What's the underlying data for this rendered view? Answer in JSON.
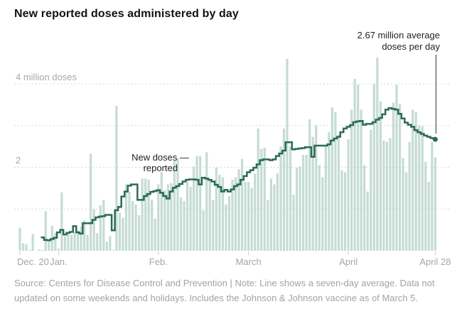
{
  "title": "New reported doses administered by day",
  "y_axis": {
    "label_4m": "4 million doses",
    "label_2m": "2"
  },
  "x_axis": {
    "ticks": [
      {
        "label": "Dec. 20",
        "day_index": 0
      },
      {
        "label": "Jan.",
        "day_index": 12
      },
      {
        "label": "Feb.",
        "day_index": 43
      },
      {
        "label": "March",
        "day_index": 71
      },
      {
        "label": "April",
        "day_index": 102
      },
      {
        "label": "April 28",
        "day_index": 129
      }
    ]
  },
  "annotations": {
    "avg_line1": "2.67 million average",
    "avg_line2": "doses per day",
    "new_doses_line1": "New doses —",
    "new_doses_line2": "reported"
  },
  "source_note": "Source: Centers for Disease Control and Prevention | Note: Line shows a seven-day average. Data not updated on some weekends and holidays. Includes the Johnson & Johnson vaccine as of March 5.",
  "colors": {
    "bar": "#c5dcd2",
    "line": "#2b6a58",
    "gridline": "#d9d9d9",
    "tick": "#c9c9c9",
    "pointer": "#333333",
    "title_text": "#121212",
    "axis_text": "#a5a5a5",
    "source_text": "#a3a3a3"
  },
  "chart_data": {
    "type": "bar",
    "note": "daily bars with seven-day-average step line overlay",
    "start_date": "2020-12-20",
    "end_date": "2021-04-28",
    "unit": "million doses per day",
    "ylim": [
      0,
      4.7
    ],
    "grid_values_million": [
      1,
      2,
      3,
      4
    ],
    "bars_daily_million": [
      0.55,
      0.18,
      0.16,
      0.02,
      0.4,
      0.0,
      0.03,
      0.02,
      0.95,
      0.24,
      0.6,
      0.43,
      0.05,
      1.4,
      0.35,
      0.43,
      0.38,
      0.45,
      0.48,
      0.58,
      0.73,
      0.38,
      2.33,
      1.0,
      0.42,
      1.09,
      1.22,
      0.22,
      0.35,
      0.02,
      3.47,
      0.91,
      0.79,
      1.59,
      1.42,
      1.19,
      1.11,
      0.85,
      1.73,
      1.73,
      1.7,
      1.22,
      0.77,
      1.59,
      1.88,
      1.45,
      1.59,
      1.62,
      2.16,
      2.22,
      1.28,
      1.19,
      1.65,
      1.53,
      2.02,
      2.27,
      2.27,
      0.97,
      2.36,
      1.68,
      1.22,
      1.99,
      1.82,
      1.76,
      1.11,
      1.31,
      1.7,
      1.76,
      1.95,
      2.2,
      1.65,
      1.65,
      1.51,
      1.85,
      2.93,
      2.44,
      2.47,
      1.22,
      1.73,
      1.59,
      1.85,
      2.5,
      2.93,
      4.6,
      2.5,
      1.34,
      1.99,
      2.02,
      2.3,
      2.3,
      3.15,
      2.73,
      3.01,
      2.05,
      1.76,
      2.5,
      2.84,
      3.44,
      3.32,
      2.78,
      1.93,
      1.88,
      2.67,
      3.38,
      4.12,
      3.98,
      3.38,
      2.05,
      1.42,
      2.9,
      4.0,
      4.63,
      3.58,
      2.64,
      2.61,
      2.7,
      3.55,
      3.98,
      3.52,
      2.22,
      1.88,
      2.61,
      3.38,
      3.32,
      3.01,
      2.98,
      2.13,
      1.65,
      2.61,
      2.24
    ],
    "line_7day_avg": {
      "start_date": "2020-12-27",
      "start_day_index": 7,
      "values_million": [
        0.32,
        0.26,
        0.25,
        0.28,
        0.31,
        0.44,
        0.5,
        0.39,
        0.43,
        0.45,
        0.59,
        0.44,
        0.41,
        0.66,
        0.66,
        0.66,
        0.74,
        0.8,
        0.82,
        0.83,
        0.86,
        0.86,
        0.49,
        0.97,
        1.05,
        1.3,
        1.42,
        1.56,
        1.59,
        1.59,
        1.22,
        1.22,
        1.31,
        1.36,
        1.41,
        1.43,
        1.45,
        1.39,
        1.31,
        1.25,
        1.42,
        1.51,
        1.55,
        1.6,
        1.66,
        1.7,
        1.71,
        1.71,
        1.7,
        1.59,
        1.75,
        1.73,
        1.7,
        1.66,
        1.58,
        1.53,
        1.42,
        1.46,
        1.42,
        1.47,
        1.55,
        1.59,
        1.7,
        1.79,
        1.88,
        1.93,
        1.99,
        2.07,
        2.17,
        2.19,
        2.19,
        2.17,
        2.19,
        2.27,
        2.33,
        2.4,
        2.6,
        2.6,
        2.43,
        2.44,
        2.45,
        2.46,
        2.48,
        2.48,
        2.25,
        2.52,
        2.52,
        2.52,
        2.52,
        2.55,
        2.64,
        2.69,
        2.73,
        2.84,
        2.93,
        2.97,
        3.01,
        3.08,
        3.1,
        3.11,
        3.02,
        3.04,
        3.04,
        3.08,
        3.14,
        3.18,
        3.27,
        3.38,
        3.42,
        3.4,
        3.38,
        3.28,
        3.17,
        3.07,
        3.02,
        2.97,
        2.89,
        2.84,
        2.8,
        2.76,
        2.73,
        2.7,
        2.67
      ],
      "end_value_million": 2.67
    }
  }
}
